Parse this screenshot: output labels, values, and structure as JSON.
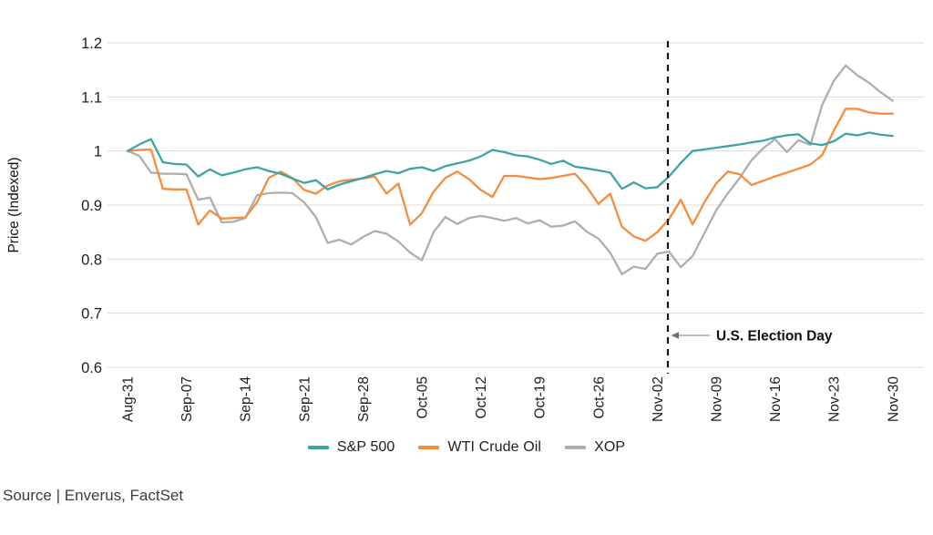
{
  "page": {
    "background_color": "#ffffff"
  },
  "footer": {
    "source": "Source | Enverus, FactSet"
  },
  "chart_data": {
    "type": "line",
    "title": "",
    "xlabel": "",
    "ylabel": "Price (Indexed)",
    "ylim": [
      0.6,
      1.2
    ],
    "y_ticks": [
      {
        "label": "1.2",
        "value": 1.2
      },
      {
        "label": "1.1",
        "value": 1.1
      },
      {
        "label": "1",
        "value": 1.0
      },
      {
        "label": "0.9",
        "value": 0.9
      },
      {
        "label": "0.8",
        "value": 0.8
      },
      {
        "label": "0.7",
        "value": 0.7
      },
      {
        "label": "0.6",
        "value": 0.6
      }
    ],
    "x_tick_labels": [
      "Aug-31",
      "Sep-07",
      "Sep-14",
      "Sep-21",
      "Sep-28",
      "Oct-05",
      "Oct-12",
      "Oct-19",
      "Oct-26",
      "Nov-02",
      "Nov-09",
      "Nov-16",
      "Nov-23",
      "Nov-30"
    ],
    "points_per_tick": 5,
    "grid": "horizontal",
    "gridline_color": "#d9d9d9",
    "text_color": "#1d1d1d",
    "legend_position": "bottom",
    "series": [
      {
        "name": "S&P 500",
        "color": "#3ea3a6",
        "values": [
          1.0,
          1.012,
          1.022,
          0.979,
          0.976,
          0.975,
          0.953,
          0.966,
          0.955,
          0.96,
          0.966,
          0.97,
          0.963,
          0.958,
          0.949,
          0.941,
          0.946,
          0.929,
          0.938,
          0.944,
          0.95,
          0.957,
          0.963,
          0.959,
          0.967,
          0.97,
          0.963,
          0.972,
          0.977,
          0.982,
          0.99,
          1.002,
          0.998,
          0.992,
          0.99,
          0.984,
          0.976,
          0.982,
          0.971,
          0.968,
          0.964,
          0.96,
          0.93,
          0.942,
          0.931,
          0.933,
          0.953,
          0.978,
          1.0,
          1.003,
          1.006,
          1.009,
          1.012,
          1.016,
          1.019,
          1.025,
          1.029,
          1.031,
          1.014,
          1.011,
          1.018,
          1.032,
          1.029,
          1.034,
          1.03,
          1.028
        ]
      },
      {
        "name": "WTI Crude Oil",
        "color": "#f68c3c",
        "values": [
          1.0,
          1.002,
          1.003,
          0.93,
          0.929,
          0.929,
          0.864,
          0.89,
          0.875,
          0.876,
          0.877,
          0.905,
          0.95,
          0.962,
          0.95,
          0.928,
          0.921,
          0.936,
          0.944,
          0.947,
          0.949,
          0.953,
          0.921,
          0.94,
          0.864,
          0.885,
          0.925,
          0.95,
          0.962,
          0.948,
          0.928,
          0.915,
          0.954,
          0.954,
          0.951,
          0.948,
          0.95,
          0.954,
          0.958,
          0.934,
          0.902,
          0.921,
          0.86,
          0.842,
          0.834,
          0.85,
          0.874,
          0.91,
          0.864,
          0.905,
          0.94,
          0.962,
          0.957,
          0.937,
          0.945,
          0.953,
          0.96,
          0.967,
          0.975,
          0.992,
          1.038,
          1.078,
          1.078,
          1.071,
          1.069,
          1.069
        ]
      },
      {
        "name": "XOP",
        "color": "#aeaeae",
        "values": [
          1.0,
          0.991,
          0.96,
          0.958,
          0.958,
          0.957,
          0.91,
          0.914,
          0.868,
          0.869,
          0.876,
          0.918,
          0.922,
          0.923,
          0.922,
          0.905,
          0.878,
          0.83,
          0.836,
          0.827,
          0.841,
          0.852,
          0.847,
          0.833,
          0.812,
          0.798,
          0.85,
          0.878,
          0.865,
          0.876,
          0.88,
          0.876,
          0.871,
          0.876,
          0.866,
          0.872,
          0.86,
          0.862,
          0.87,
          0.851,
          0.838,
          0.812,
          0.772,
          0.786,
          0.782,
          0.81,
          0.814,
          0.785,
          0.806,
          0.848,
          0.89,
          0.922,
          0.95,
          0.983,
          1.005,
          1.022,
          0.998,
          1.02,
          1.011,
          1.085,
          1.13,
          1.158,
          1.14,
          1.126,
          1.108,
          1.093
        ]
      }
    ],
    "event_line": {
      "label": "U.S. Election Day",
      "between_points": [
        45,
        46
      ],
      "x_position_index": 45.9,
      "style": "dashed",
      "color": "#141414"
    }
  }
}
